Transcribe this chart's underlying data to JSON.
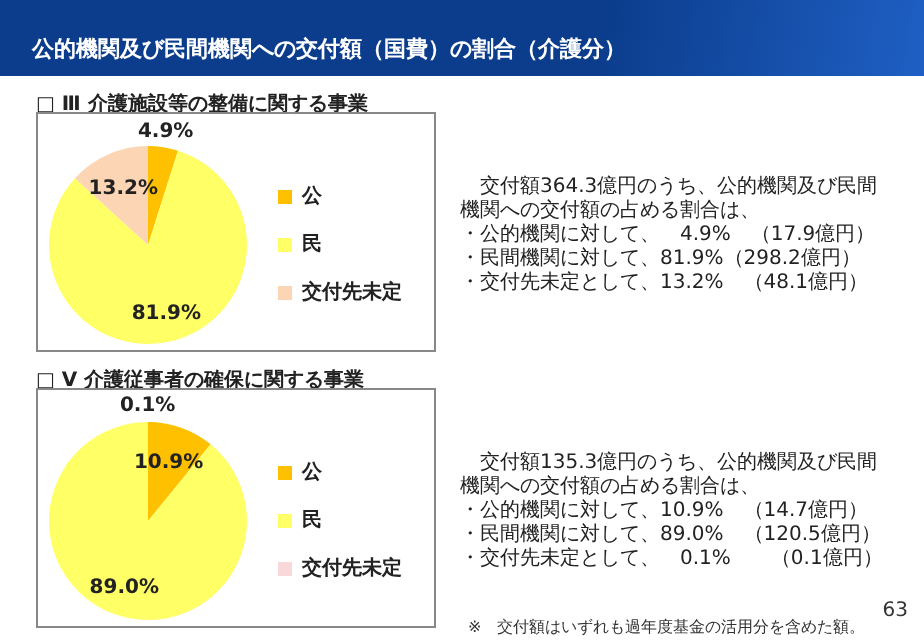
{
  "chart_data": [
    {
      "type": "pie",
      "title": "公的機関及び民間機関への交付額（国費）の割合（介護分）",
      "subtitle": "□ Ⅲ 介護施設等の整備に関する事業",
      "categories": [
        "公",
        "民",
        "交付先未定"
      ],
      "values": [
        4.9,
        81.9,
        13.2
      ],
      "colors": [
        "#ffc000",
        "#ffff66",
        "#fcd5b5"
      ],
      "value_labels": [
        "4.9%",
        "81.9%",
        "13.2%"
      ],
      "legend": "right",
      "annotations": [
        "交付額364.3億円のうち、公的機関及び民間機関への交付額の占める割合は、",
        "・公的機関に対して、　4.9%　（17.9億円）",
        "・民間機関に対して、81.9%（298.2億円）",
        "・交付先未定として、13.2%　（48.1億円）"
      ]
    },
    {
      "type": "pie",
      "title": "□ Ⅴ 介護従事者の確保に関する事業",
      "categories": [
        "公",
        "民",
        "交付先未定"
      ],
      "values": [
        10.9,
        89.0,
        0.1
      ],
      "colors": [
        "#ffc000",
        "#ffff66",
        "#f8d8d8"
      ],
      "value_labels": [
        "10.9%",
        "89.0%",
        "0.1%"
      ],
      "legend": "right",
      "annotations": [
        "交付額135.3億円のうち、公的機関及び民間機関への交付額の占める割合は、",
        "・公的機関に対して、10.9%　（14.7億円）",
        "・民間機関に対して、89.0%　（120.5億円）",
        "・交付先未定として、　0.1%　　（0.1億円）",
        "※　交付額はいずれも過年度基金の活用分を含めた額。",
        "63"
      ]
    }
  ]
}
